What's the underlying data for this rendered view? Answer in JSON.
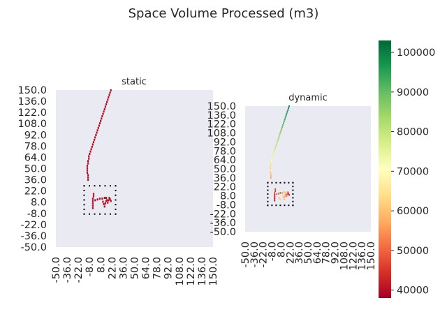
{
  "chart_data": {
    "type": "heatmap",
    "title": "Space Volume Processed (m3)",
    "colormap": "RdYlGn",
    "colorbar": {
      "min": 38000,
      "max": 103000,
      "ticks": [
        40000,
        50000,
        60000,
        70000,
        80000,
        90000,
        100000
      ],
      "tick_labels": [
        "40000",
        "50000",
        "60000",
        "70000",
        "80000",
        "90000",
        "100000"
      ]
    },
    "colors": {
      "background": "#eaeaf2",
      "low": "#a50026",
      "high": "#006837",
      "box_dots": "#000000"
    },
    "x_range": [
      -50,
      150
    ],
    "y_range": [
      -50,
      150
    ],
    "x_tick_labels": [
      "-50.0",
      "-36.0",
      "-22.0",
      "-8.0",
      "8.0",
      "22.0",
      "36.0",
      "50.0",
      "64.0",
      "78.0",
      "92.0",
      "108.0",
      "122.0",
      "136.0",
      "150.0"
    ],
    "y_tick_labels": [
      "150.0",
      "136.0",
      "122.0",
      "108.0",
      "92.0",
      "78.0",
      "64.0",
      "50.0",
      "36.0",
      "22.0",
      "8.0",
      "-8.0",
      "-22.0",
      "-36.0",
      "-50.0"
    ],
    "dotted_box": {
      "x": [
        -14,
        26
      ],
      "y": [
        -8,
        28
      ]
    },
    "panels": [
      {
        "title": "static",
        "points": [
          [
            20,
            150,
            40000
          ],
          [
            19,
            147,
            40000
          ],
          [
            18,
            144,
            40000
          ],
          [
            17,
            141,
            40000
          ],
          [
            16,
            138,
            40000
          ],
          [
            15,
            135,
            40000
          ],
          [
            14,
            132,
            40000
          ],
          [
            13,
            129,
            40000
          ],
          [
            12,
            126,
            40000
          ],
          [
            11,
            123,
            40000
          ],
          [
            10,
            120,
            40000
          ],
          [
            9,
            117,
            40000
          ],
          [
            8,
            114,
            40000
          ],
          [
            7,
            111,
            40000
          ],
          [
            6,
            108,
            40000
          ],
          [
            5,
            105,
            40000
          ],
          [
            4,
            102,
            40000
          ],
          [
            3,
            99,
            40000
          ],
          [
            2,
            96,
            40000
          ],
          [
            1,
            93,
            40000
          ],
          [
            0,
            90,
            40000
          ],
          [
            -1,
            87,
            40000
          ],
          [
            -2,
            84,
            40000
          ],
          [
            -3,
            81,
            40000
          ],
          [
            -4,
            78,
            40000
          ],
          [
            -5,
            75,
            40000
          ],
          [
            -6,
            72,
            40000
          ],
          [
            -7,
            69,
            40000
          ],
          [
            -8,
            66,
            40000
          ],
          [
            -8,
            63,
            40000
          ],
          [
            -9,
            60,
            40000
          ],
          [
            -9,
            57,
            40000
          ],
          [
            -10,
            54,
            40000
          ],
          [
            -10,
            51,
            40000
          ],
          [
            -10,
            48,
            40000
          ],
          [
            -10,
            45,
            40000
          ],
          [
            -9,
            42,
            40000
          ],
          [
            -9,
            39,
            40000
          ],
          [
            -9,
            36,
            40000
          ],
          [
            -2,
            18,
            40000
          ],
          [
            -2,
            15,
            40000
          ],
          [
            -3,
            12,
            40000
          ],
          [
            -3,
            9,
            40000
          ],
          [
            -3,
            6,
            40000
          ],
          [
            -3,
            3,
            40000
          ],
          [
            -3,
            0,
            40000
          ],
          [
            0,
            10,
            40000
          ],
          [
            3,
            11,
            40000
          ],
          [
            6,
            12,
            40000
          ],
          [
            9,
            12,
            40000
          ],
          [
            12,
            13,
            40000
          ],
          [
            14,
            13,
            40000
          ],
          [
            15,
            10,
            40000
          ],
          [
            16,
            7,
            40000
          ],
          [
            17,
            10,
            40000
          ],
          [
            18,
            13,
            40000
          ],
          [
            19,
            11,
            40000
          ],
          [
            20,
            9,
            40000
          ],
          [
            10,
            8,
            40000
          ],
          [
            11,
            5,
            40000
          ],
          [
            12,
            2,
            40000
          ],
          [
            13,
            6,
            40000
          ],
          [
            14,
            9,
            40000
          ]
        ]
      },
      {
        "title": "dynamic",
        "points": [
          [
            20,
            150,
            101000
          ],
          [
            19,
            147,
            100000
          ],
          [
            18,
            144,
            99000
          ],
          [
            17,
            141,
            98000
          ],
          [
            16,
            138,
            97000
          ],
          [
            15,
            135,
            96000
          ],
          [
            14,
            132,
            95000
          ],
          [
            13,
            129,
            94000
          ],
          [
            12,
            126,
            93000
          ],
          [
            11,
            123,
            92000
          ],
          [
            10,
            120,
            91000
          ],
          [
            9,
            117,
            90000
          ],
          [
            8,
            114,
            89000
          ],
          [
            7,
            111,
            88000
          ],
          [
            6,
            108,
            87000
          ],
          [
            5,
            105,
            86000
          ],
          [
            4,
            102,
            85000
          ],
          [
            3,
            99,
            84000
          ],
          [
            2,
            96,
            83000
          ],
          [
            1,
            93,
            82000
          ],
          [
            0,
            90,
            81000
          ],
          [
            -1,
            87,
            80000
          ],
          [
            -2,
            84,
            79000
          ],
          [
            -3,
            81,
            78000
          ],
          [
            -4,
            78,
            77000
          ],
          [
            -5,
            75,
            76000
          ],
          [
            -6,
            72,
            75000
          ],
          [
            -7,
            69,
            74000
          ],
          [
            -8,
            66,
            72000
          ],
          [
            -8,
            63,
            70000
          ],
          [
            -9,
            60,
            66000
          ],
          [
            -9,
            57,
            64000
          ],
          [
            -10,
            54,
            63000
          ],
          [
            -10,
            51,
            62000
          ],
          [
            -10,
            45,
            60000
          ],
          [
            -9,
            42,
            60000
          ],
          [
            -9,
            39,
            58000
          ],
          [
            -9,
            36,
            57000
          ],
          [
            -2,
            18,
            46000
          ],
          [
            -2,
            15,
            44000
          ],
          [
            -3,
            12,
            43000
          ],
          [
            -3,
            9,
            42000
          ],
          [
            -3,
            6,
            41000
          ],
          [
            -3,
            3,
            40000
          ],
          [
            -3,
            0,
            40000
          ],
          [
            0,
            10,
            50000
          ],
          [
            3,
            11,
            48000
          ],
          [
            6,
            12,
            47000
          ],
          [
            9,
            12,
            55000
          ],
          [
            12,
            13,
            58000
          ],
          [
            14,
            13,
            60000
          ],
          [
            15,
            10,
            56000
          ],
          [
            16,
            7,
            52000
          ],
          [
            17,
            10,
            48000
          ],
          [
            18,
            13,
            46000
          ],
          [
            19,
            11,
            44000
          ],
          [
            20,
            9,
            42000
          ],
          [
            10,
            8,
            62000
          ],
          [
            11,
            5,
            60000
          ],
          [
            12,
            2,
            58000
          ],
          [
            13,
            6,
            56000
          ],
          [
            14,
            9,
            54000
          ],
          [
            4,
            4,
            60000
          ],
          [
            6,
            2,
            62000
          ]
        ]
      }
    ]
  }
}
